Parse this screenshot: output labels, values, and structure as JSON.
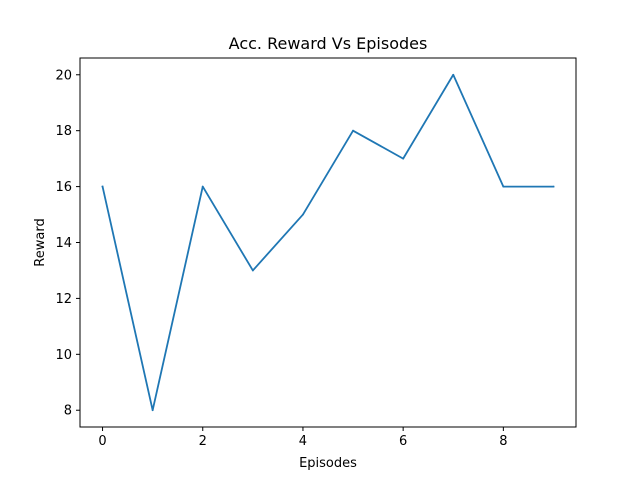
{
  "chart_data": {
    "type": "line",
    "title": "Acc. Reward Vs Episodes",
    "xlabel": "Episodes",
    "ylabel": "Reward",
    "x": [
      0,
      1,
      2,
      3,
      4,
      5,
      6,
      7,
      8,
      9
    ],
    "series": [
      {
        "values": [
          16,
          8,
          16,
          13,
          15,
          18,
          17,
          20,
          16,
          16
        ],
        "color": "#1f77b4"
      }
    ],
    "xlim": [
      -0.45,
      9.45
    ],
    "ylim": [
      7.4,
      20.6
    ],
    "xticks": [
      0,
      2,
      4,
      6,
      8
    ],
    "yticks": [
      8,
      10,
      12,
      14,
      16,
      18,
      20
    ],
    "grid": false,
    "legend": "none"
  }
}
